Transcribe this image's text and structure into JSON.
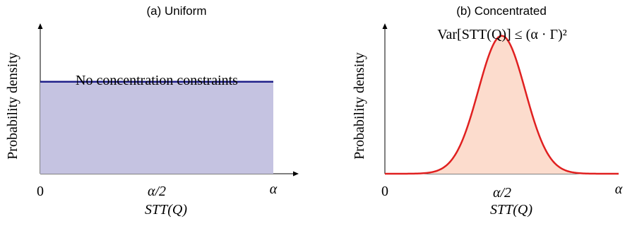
{
  "chart_data": [
    {
      "type": "area",
      "title": "(a) Uniform",
      "xlabel": "STT(Q)",
      "ylabel": "Probability density",
      "x_ticks": [
        "0",
        "α/2",
        "α"
      ],
      "annotation": "No concentration constraints",
      "density_level": 0.62,
      "x_range": [
        0,
        1
      ],
      "colors": {
        "line": "#1f1f8a",
        "fill": "#c5c3e1"
      }
    },
    {
      "type": "area",
      "title": "(b) Concentrated",
      "xlabel": "STT(Q)",
      "ylabel": "Probability density",
      "x_ticks": [
        "0",
        "α/2",
        "α"
      ],
      "annotation": "Var[STT(Q)] ≤ (α · Γ)²",
      "distribution": {
        "shape": "gaussian",
        "mean": 0.5,
        "sd": 0.1,
        "peak_level": 0.93
      },
      "x_range": [
        0,
        1
      ],
      "colors": {
        "line": "#e02020",
        "fill": "#fcdccd"
      }
    }
  ]
}
